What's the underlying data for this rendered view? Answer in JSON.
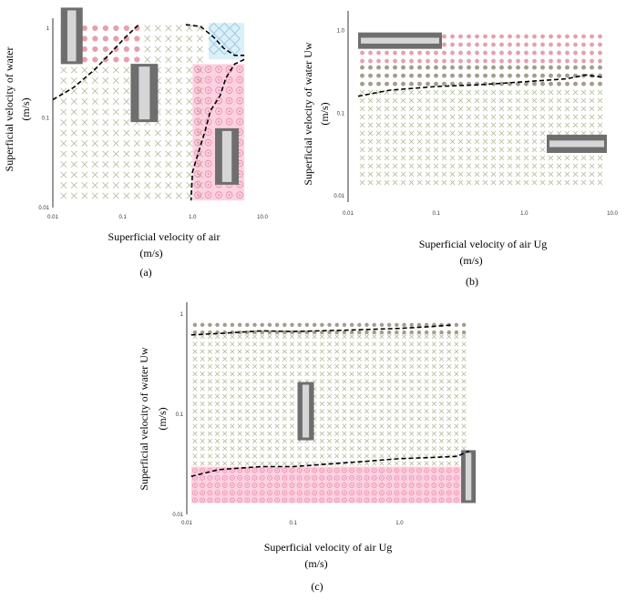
{
  "colors": {
    "cross": "#a8b48c",
    "dot_pink": "#e6a0ac",
    "dot_gray": "#a49c8c",
    "ring_pink": "#ec8aa6",
    "fill_pink": "#fbd2e2",
    "diamond_blue": "#8cc4dc",
    "fill_blue": "#dcf0f8",
    "photo_dark": "#6e6e6e",
    "photo_light": "#d6d6d6"
  },
  "chart_data": [
    {
      "type": "scatter",
      "panel_label": "(a)",
      "xlabel": "Superficial velocity of air",
      "xunit": "(m/s)",
      "ylabel": "Superficial velocity of water",
      "yunit": "(m/s)",
      "xscale": "log",
      "yscale": "log",
      "xlim": [
        0.01,
        10
      ],
      "ylim": [
        0.01,
        1.3
      ],
      "xticks": [
        {
          "value": 0.01,
          "label": "0.01"
        },
        {
          "value": 0.1,
          "label": "0.1"
        },
        {
          "value": 1,
          "label": "1.0"
        },
        {
          "value": 10,
          "label": "10.0"
        }
      ],
      "yticks": [
        {
          "value": 0.01,
          "label": "0.01"
        },
        {
          "value": 0.1,
          "label": "0.1"
        },
        {
          "value": 1,
          "label": "1"
        }
      ],
      "regions": [
        {
          "marker": "dot",
          "color": "dot_pink",
          "x": [
            0.012,
            0.19
          ],
          "y": [
            0.4,
            1.15
          ]
        },
        {
          "marker": "cross",
          "color": "cross",
          "x": [
            0.012,
            1.6
          ],
          "y": [
            0.012,
            1.15
          ]
        },
        {
          "marker": "diamond",
          "color": "diamond_blue",
          "x": [
            1.7,
            5.5
          ],
          "y": [
            0.45,
            1.15
          ]
        },
        {
          "marker": "ring",
          "color": "ring_pink",
          "x": [
            1.0,
            5.5
          ],
          "y": [
            0.012,
            0.4
          ]
        }
      ],
      "boundaries": [
        [
          [
            0.01,
            0.16
          ],
          [
            0.02,
            0.22
          ],
          [
            0.04,
            0.35
          ],
          [
            0.07,
            0.55
          ],
          [
            0.11,
            0.8
          ],
          [
            0.17,
            1.1
          ]
        ],
        [
          [
            0.8,
            1.1
          ],
          [
            1.3,
            1.05
          ],
          [
            2.0,
            0.8
          ],
          [
            2.8,
            0.6
          ],
          [
            4.0,
            0.5
          ],
          [
            5.5,
            0.5
          ]
        ],
        [
          [
            5.5,
            0.45
          ],
          [
            4.0,
            0.4
          ],
          [
            3.0,
            0.28
          ],
          [
            2.5,
            0.18
          ],
          [
            1.8,
            0.12
          ],
          [
            1.5,
            0.07
          ],
          [
            1.2,
            0.04
          ],
          [
            1.0,
            0.025
          ],
          [
            0.95,
            0.012
          ]
        ]
      ],
      "photos": [
        {
          "x": 0.013,
          "y": 0.4
        },
        {
          "x": 0.13,
          "y": 0.09
        },
        {
          "x": 2.1,
          "y": 0.018
        }
      ]
    },
    {
      "type": "scatter",
      "panel_label": "(b)",
      "xlabel": "Superficial velocity of air Ug",
      "xunit": "(m/s)",
      "ylabel": "Superficial velocity of water Uw",
      "yunit": "(m/s)",
      "xscale": "log",
      "yscale": "log",
      "xlim": [
        0.01,
        10
      ],
      "ylim": [
        0.01,
        1.6
      ],
      "xticks": [
        {
          "value": 0.01,
          "label": "0.01"
        },
        {
          "value": 0.1,
          "label": "0.1"
        },
        {
          "value": 1,
          "label": "1.0"
        },
        {
          "value": 10,
          "label": "10.0"
        }
      ],
      "yticks": [
        {
          "value": 0.01,
          "label": "0.01"
        },
        {
          "value": 0.1,
          "label": "0.1"
        },
        {
          "value": 1,
          "label": "1.0"
        }
      ],
      "regions": [
        {
          "marker": "dot",
          "color": "dot_pink",
          "x": [
            0.013,
            8
          ],
          "y": [
            0.4,
            0.95
          ]
        },
        {
          "marker": "dot",
          "color": "dot_gray",
          "x": [
            0.013,
            8
          ],
          "y": [
            0.2,
            0.4
          ]
        },
        {
          "marker": "cross",
          "color": "cross",
          "x": [
            0.013,
            8
          ],
          "y": [
            0.012,
            0.2
          ]
        }
      ],
      "boundaries": [
        [
          [
            0.013,
            0.16
          ],
          [
            0.03,
            0.19
          ],
          [
            0.1,
            0.21
          ],
          [
            0.3,
            0.22
          ],
          [
            1.0,
            0.24
          ],
          [
            3.0,
            0.26
          ],
          [
            5.0,
            0.29
          ],
          [
            8.0,
            0.27
          ]
        ]
      ],
      "photos": [
        {
          "x": 0.013,
          "y": 0.6
        },
        {
          "x": 1.8,
          "y": 0.033
        }
      ]
    },
    {
      "type": "scatter",
      "panel_label": "(c)",
      "xlabel": "Superficial velocity of air Ug",
      "xunit": "(m/s)",
      "ylabel": "Superficial velocity of water Uw",
      "yunit": "(m/s)",
      "xscale": "log",
      "yscale": "log",
      "xlim": [
        0.01,
        5
      ],
      "ylim": [
        0.01,
        1
      ],
      "xticks": [
        {
          "value": 0.01,
          "label": "0.01"
        },
        {
          "value": 0.1,
          "label": "0.1"
        },
        {
          "value": 1,
          "label": "1.0"
        }
      ],
      "yticks": [
        {
          "value": 0.01,
          "label": "0.01"
        },
        {
          "value": 0.1,
          "label": "0.1"
        },
        {
          "value": 1,
          "label": "1"
        }
      ],
      "regions": [
        {
          "marker": "dot",
          "color": "dot_gray",
          "x": [
            0.011,
            4.5
          ],
          "y": [
            0.65,
            0.85
          ]
        },
        {
          "marker": "cross",
          "color": "cross",
          "x": [
            0.011,
            4.5
          ],
          "y": [
            0.03,
            0.65
          ]
        },
        {
          "marker": "ring",
          "color": "ring_pink",
          "x": [
            0.011,
            4.5
          ],
          "y": [
            0.013,
            0.03
          ]
        }
      ],
      "boundaries": [
        [
          [
            0.011,
            0.62
          ],
          [
            0.02,
            0.64
          ],
          [
            0.05,
            0.68
          ],
          [
            0.1,
            0.67
          ],
          [
            0.3,
            0.69
          ],
          [
            1.0,
            0.72
          ],
          [
            2.0,
            0.75
          ],
          [
            3.2,
            0.78
          ]
        ],
        [
          [
            0.011,
            0.024
          ],
          [
            0.02,
            0.028
          ],
          [
            0.05,
            0.03
          ],
          [
            0.1,
            0.03
          ],
          [
            0.5,
            0.034
          ],
          [
            1.0,
            0.036
          ],
          [
            2.0,
            0.037
          ],
          [
            3.5,
            0.038
          ],
          [
            4.5,
            0.043
          ]
        ]
      ],
      "photos": [
        {
          "x": 0.11,
          "y": 0.055
        },
        {
          "x": 3.8,
          "y": 0.013
        }
      ]
    }
  ]
}
